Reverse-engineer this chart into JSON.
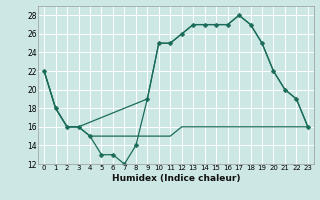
{
  "title": "",
  "xlabel": "Humidex (Indice chaleur)",
  "bg_color": "#cde8e4",
  "line_color": "#1a6b5a",
  "grid_color": "#ffffff",
  "xlim": [
    -0.5,
    23.5
  ],
  "ylim": [
    12,
    29
  ],
  "yticks": [
    12,
    14,
    16,
    18,
    20,
    22,
    24,
    26,
    28
  ],
  "xticks": [
    0,
    1,
    2,
    3,
    4,
    5,
    6,
    7,
    8,
    9,
    10,
    11,
    12,
    13,
    14,
    15,
    16,
    17,
    18,
    19,
    20,
    21,
    22,
    23
  ],
  "line1_x": [
    0,
    1,
    2,
    3,
    4,
    5,
    6,
    7,
    8,
    9,
    10,
    11,
    12,
    13,
    14,
    15,
    16,
    17,
    18,
    19,
    20,
    21,
    22,
    23
  ],
  "line1_y": [
    22,
    18,
    16,
    16,
    15,
    13,
    13,
    12,
    14,
    19,
    25,
    25,
    26,
    27,
    27,
    27,
    27,
    28,
    27,
    25,
    22,
    20,
    19,
    16
  ],
  "line2_x": [
    0,
    1,
    2,
    3,
    4,
    5,
    6,
    7,
    8,
    9,
    10,
    11,
    12,
    13,
    14,
    15,
    16,
    17,
    18,
    19,
    20,
    21,
    22,
    23
  ],
  "line2_y": [
    22,
    18,
    16,
    16,
    15,
    15,
    15,
    15,
    15,
    15,
    15,
    15,
    16,
    16,
    16,
    16,
    16,
    16,
    16,
    16,
    16,
    16,
    16,
    16
  ],
  "line3_x": [
    0,
    1,
    2,
    3,
    9,
    10,
    11,
    12,
    13,
    14,
    15,
    16,
    17,
    18,
    19,
    20,
    21,
    22,
    23
  ],
  "line3_y": [
    22,
    18,
    16,
    16,
    19,
    25,
    25,
    26,
    27,
    27,
    27,
    27,
    28,
    27,
    25,
    22,
    20,
    19,
    16
  ]
}
